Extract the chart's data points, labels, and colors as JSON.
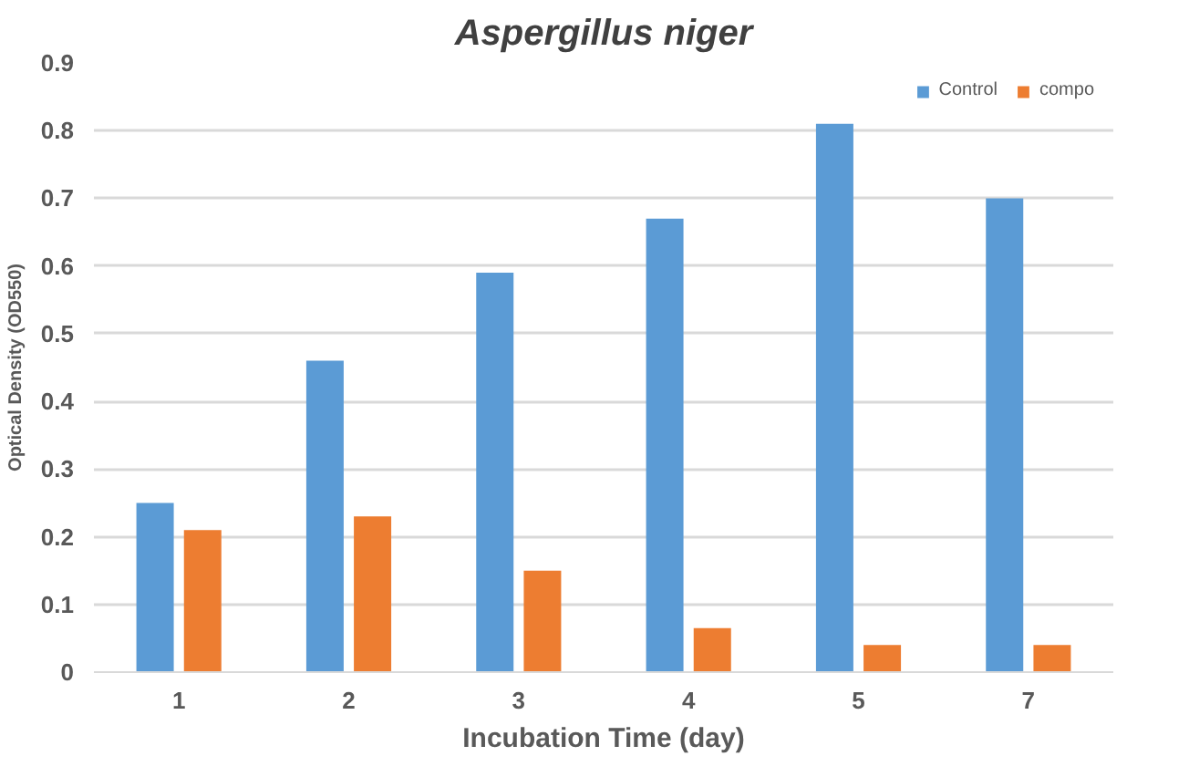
{
  "chart_data": {
    "type": "bar",
    "title": "Aspergillus niger",
    "xlabel": "Incubation Time (day)",
    "ylabel": "Optical Density (OD550)",
    "categories": [
      "1",
      "2",
      "3",
      "4",
      "5",
      "7"
    ],
    "series": [
      {
        "name": "Control",
        "color": "#5b9bd5",
        "values": [
          0.25,
          0.46,
          0.59,
          0.67,
          0.81,
          0.7
        ]
      },
      {
        "name": "compo",
        "color": "#ed7d31",
        "values": [
          0.21,
          0.23,
          0.15,
          0.065,
          0.04,
          0.04
        ]
      }
    ],
    "ylim": [
      0,
      0.9
    ],
    "yticks": [
      {
        "value": 0,
        "label": "0"
      },
      0.1,
      0.2,
      0.3,
      0.4,
      0.5,
      0.6,
      0.7,
      0.8,
      0.9
    ],
    "grid": "y",
    "legend": "top right"
  }
}
